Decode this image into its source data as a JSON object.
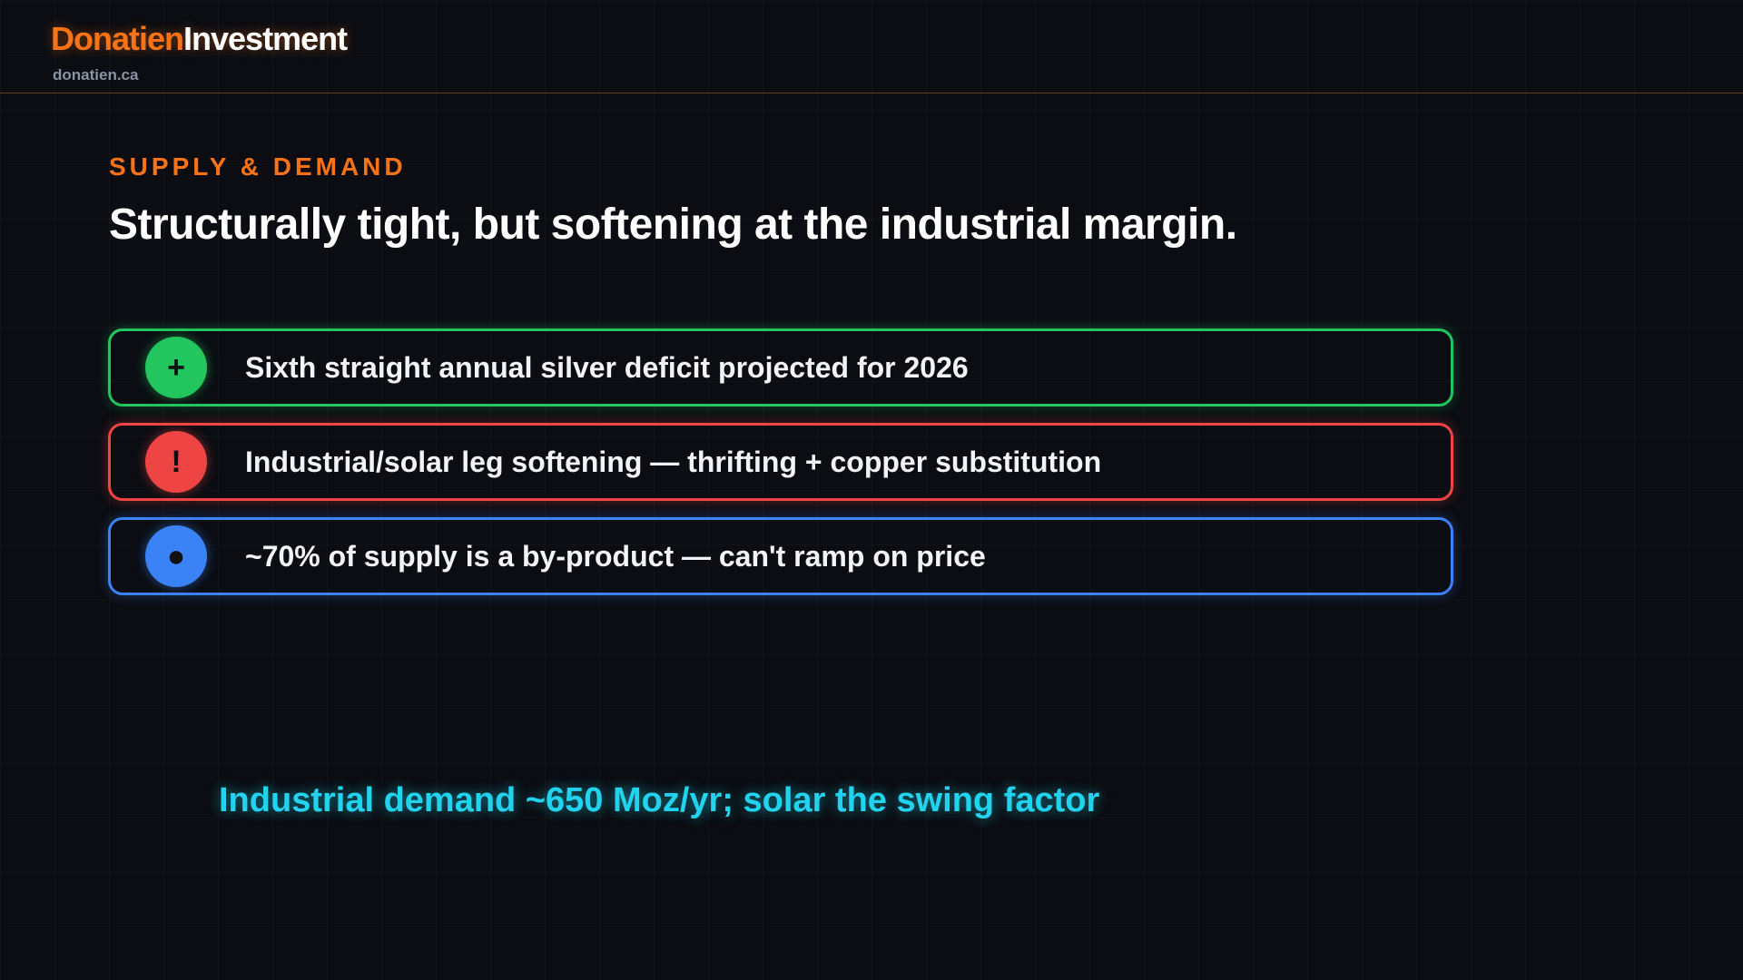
{
  "header": {
    "brand_first": "Donatien",
    "brand_second": "Investment",
    "url": "donatien.ca"
  },
  "section": {
    "eyebrow": "SUPPLY & DEMAND",
    "title": "Structurally tight, but softening at the industrial margin."
  },
  "items": [
    {
      "icon": "+",
      "text": "Sixth straight annual silver deficit projected for 2026"
    },
    {
      "icon": "!",
      "text": "Industrial/solar leg softening — thrifting + copper substitution"
    },
    {
      "icon": "●",
      "text": "~70% of supply is a by-product — can't ramp on price"
    }
  ],
  "callout": "Industrial demand ~650 Moz/yr; solar the swing factor"
}
